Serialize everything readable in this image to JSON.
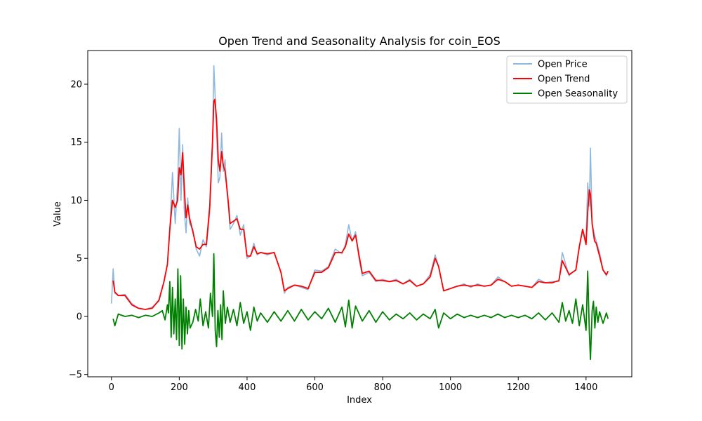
{
  "chart_data": {
    "type": "line",
    "title": "Open Trend and Seasonality Analysis for coin_EOS",
    "xlabel": "Index",
    "ylabel": "Value",
    "xlim": [
      -70,
      1535
    ],
    "ylim": [
      -5.2,
      22.9
    ],
    "xticks": [
      0,
      200,
      400,
      600,
      800,
      1000,
      1200,
      1400
    ],
    "yticks": [
      -5,
      0,
      5,
      10,
      15,
      20
    ],
    "grid": false,
    "legend": "top-right",
    "series": [
      {
        "name": "Open Price",
        "color": "#8fb8dc",
        "x": [
          0,
          5,
          10,
          20,
          40,
          60,
          80,
          100,
          120,
          140,
          155,
          165,
          172,
          180,
          188,
          195,
          200,
          205,
          210,
          215,
          220,
          225,
          230,
          240,
          250,
          260,
          270,
          280,
          290,
          298,
          302,
          305,
          310,
          315,
          320,
          325,
          330,
          335,
          340,
          345,
          350,
          360,
          370,
          380,
          390,
          400,
          410,
          420,
          430,
          440,
          460,
          480,
          500,
          510,
          520,
          540,
          560,
          580,
          600,
          620,
          640,
          660,
          680,
          690,
          700,
          710,
          720,
          730,
          740,
          760,
          780,
          800,
          820,
          840,
          860,
          880,
          900,
          920,
          940,
          955,
          965,
          980,
          1000,
          1020,
          1040,
          1060,
          1080,
          1100,
          1120,
          1140,
          1160,
          1180,
          1200,
          1220,
          1240,
          1260,
          1280,
          1300,
          1320,
          1330,
          1340,
          1350,
          1360,
          1370,
          1380,
          1390,
          1400,
          1405,
          1410,
          1413,
          1418,
          1425,
          1430,
          1440,
          1450,
          1460,
          1465
        ],
        "values": [
          1.1,
          4.1,
          2.0,
          1.8,
          1.9,
          1.1,
          0.7,
          0.6,
          0.8,
          1.3,
          3.0,
          4.5,
          7.5,
          12.4,
          8.0,
          11.5,
          16.2,
          10.0,
          14.8,
          9.0,
          7.2,
          10.2,
          8.0,
          7.5,
          5.8,
          5.2,
          6.6,
          6.0,
          9.0,
          15.0,
          21.6,
          19.5,
          16.0,
          11.5,
          12.0,
          15.8,
          12.5,
          13.5,
          11.0,
          9.5,
          7.5,
          8.0,
          8.7,
          7.0,
          7.9,
          5.0,
          5.2,
          6.3,
          5.3,
          5.5,
          5.3,
          5.5,
          3.8,
          2.0,
          2.5,
          2.7,
          2.5,
          2.3,
          4.0,
          3.9,
          4.3,
          5.8,
          5.4,
          6.2,
          7.9,
          6.5,
          7.3,
          5.0,
          3.5,
          3.8,
          3.0,
          3.2,
          3.0,
          3.2,
          2.8,
          3.2,
          2.6,
          2.8,
          3.6,
          5.3,
          4.3,
          2.2,
          2.4,
          2.6,
          2.8,
          2.5,
          2.8,
          2.6,
          2.7,
          3.4,
          3.0,
          2.6,
          2.7,
          2.6,
          2.5,
          3.2,
          2.9,
          3.0,
          3.0,
          5.5,
          4.5,
          3.5,
          3.8,
          4.0,
          6.0,
          7.5,
          6.5,
          11.5,
          9.5,
          14.5,
          8.0,
          7.0,
          6.5,
          5.5,
          4.0,
          3.5,
          3.9
        ]
      },
      {
        "name": "Open Trend",
        "color": "#ff0000",
        "x": [
          5,
          10,
          20,
          40,
          60,
          80,
          100,
          120,
          140,
          155,
          165,
          172,
          180,
          188,
          195,
          200,
          205,
          210,
          215,
          220,
          225,
          230,
          240,
          250,
          260,
          270,
          280,
          290,
          298,
          302,
          305,
          310,
          315,
          320,
          325,
          330,
          335,
          340,
          345,
          350,
          360,
          370,
          380,
          390,
          400,
          410,
          420,
          430,
          440,
          460,
          480,
          500,
          510,
          520,
          540,
          560,
          580,
          600,
          620,
          640,
          660,
          680,
          690,
          700,
          710,
          720,
          730,
          740,
          760,
          780,
          800,
          820,
          840,
          860,
          880,
          900,
          920,
          940,
          955,
          965,
          980,
          1000,
          1020,
          1040,
          1060,
          1080,
          1100,
          1120,
          1140,
          1160,
          1180,
          1200,
          1220,
          1240,
          1260,
          1280,
          1300,
          1320,
          1330,
          1340,
          1350,
          1360,
          1370,
          1380,
          1390,
          1400,
          1405,
          1410,
          1413,
          1418,
          1425,
          1430,
          1440,
          1450,
          1460,
          1465
        ],
        "values": [
          3.1,
          2.1,
          1.8,
          1.8,
          1.0,
          0.7,
          0.6,
          0.7,
          1.4,
          3.0,
          4.5,
          7.5,
          10.0,
          9.4,
          10.0,
          12.8,
          12.2,
          14.1,
          11.0,
          8.5,
          9.6,
          8.5,
          7.3,
          6.0,
          5.8,
          6.2,
          6.2,
          9.5,
          15.0,
          18.5,
          18.7,
          17.0,
          13.5,
          12.5,
          14.2,
          13.0,
          12.5,
          11.2,
          9.7,
          8.0,
          8.2,
          8.4,
          7.5,
          7.5,
          5.2,
          5.2,
          6.0,
          5.4,
          5.5,
          5.4,
          5.5,
          3.8,
          2.2,
          2.4,
          2.7,
          2.6,
          2.4,
          3.8,
          3.8,
          4.2,
          5.5,
          5.5,
          6.0,
          7.1,
          6.5,
          7.0,
          5.3,
          3.7,
          3.9,
          3.1,
          3.1,
          3.0,
          3.1,
          2.8,
          3.1,
          2.6,
          2.8,
          3.4,
          5.0,
          4.3,
          2.2,
          2.4,
          2.6,
          2.7,
          2.6,
          2.7,
          2.6,
          2.7,
          3.2,
          3.0,
          2.6,
          2.7,
          2.6,
          2.5,
          3.0,
          2.9,
          2.9,
          3.1,
          4.8,
          4.2,
          3.6,
          3.8,
          4.0,
          6.0,
          7.5,
          6.2,
          9.0,
          10.9,
          10.5,
          8.0,
          6.5,
          6.3,
          5.2,
          4.0,
          3.6,
          3.9
        ]
      },
      {
        "name": "Open Seasonality",
        "color": "#008000",
        "x": [
          5,
          10,
          20,
          40,
          60,
          80,
          100,
          120,
          140,
          150,
          158,
          165,
          168,
          172,
          176,
          180,
          184,
          188,
          192,
          196,
          200,
          204,
          208,
          212,
          216,
          220,
          224,
          228,
          232,
          240,
          248,
          256,
          262,
          270,
          278,
          286,
          292,
          298,
          302,
          306,
          310,
          314,
          318,
          322,
          326,
          330,
          336,
          342,
          350,
          360,
          370,
          380,
          390,
          400,
          410,
          420,
          430,
          440,
          460,
          480,
          500,
          520,
          540,
          560,
          580,
          600,
          620,
          640,
          660,
          680,
          690,
          700,
          710,
          720,
          740,
          760,
          780,
          800,
          820,
          840,
          860,
          880,
          900,
          920,
          940,
          955,
          965,
          980,
          1000,
          1020,
          1040,
          1060,
          1080,
          1100,
          1120,
          1140,
          1160,
          1180,
          1200,
          1220,
          1240,
          1260,
          1280,
          1300,
          1320,
          1330,
          1340,
          1350,
          1360,
          1370,
          1380,
          1390,
          1400,
          1405,
          1410,
          1413,
          1418,
          1422,
          1426,
          1430,
          1435,
          1440,
          1450,
          1460,
          1465
        ],
        "values": [
          -0.2,
          -0.8,
          0.2,
          0.0,
          0.1,
          -0.1,
          0.1,
          0.0,
          0.3,
          0.5,
          -0.3,
          1.0,
          0.3,
          3.0,
          -1.8,
          2.5,
          -1.5,
          1.5,
          -2.0,
          4.1,
          -2.5,
          3.5,
          -2.8,
          1.5,
          -2.4,
          0.8,
          -1.5,
          0.5,
          -1.0,
          -0.5,
          0.6,
          -0.4,
          1.5,
          -0.8,
          0.4,
          -1.0,
          2.0,
          0.0,
          5.4,
          -1.2,
          -2.6,
          0.5,
          -1.8,
          1.0,
          -2.0,
          2.2,
          -0.6,
          0.8,
          -0.5,
          0.6,
          -0.8,
          1.2,
          -0.6,
          0.4,
          -1.2,
          0.8,
          -0.4,
          0.3,
          -0.5,
          0.4,
          -0.4,
          0.5,
          -0.4,
          0.6,
          -0.3,
          0.4,
          -0.2,
          0.7,
          -0.5,
          0.8,
          -0.9,
          1.4,
          -1.0,
          0.9,
          -0.4,
          0.5,
          -0.5,
          0.4,
          -0.3,
          0.2,
          -0.2,
          0.3,
          -0.3,
          0.2,
          -0.2,
          0.6,
          -1.0,
          0.3,
          -0.2,
          0.2,
          -0.1,
          0.1,
          -0.1,
          0.1,
          -0.1,
          0.2,
          -0.1,
          0.1,
          -0.1,
          0.1,
          -0.2,
          0.3,
          -0.3,
          0.3,
          -0.5,
          1.2,
          -0.4,
          0.5,
          -0.6,
          1.5,
          -0.8,
          1.0,
          -1.2,
          3.9,
          -1.5,
          -3.7,
          0.5,
          1.3,
          -1.0,
          0.8,
          -0.5,
          0.4,
          -0.6,
          0.3,
          -0.2
        ]
      }
    ]
  }
}
